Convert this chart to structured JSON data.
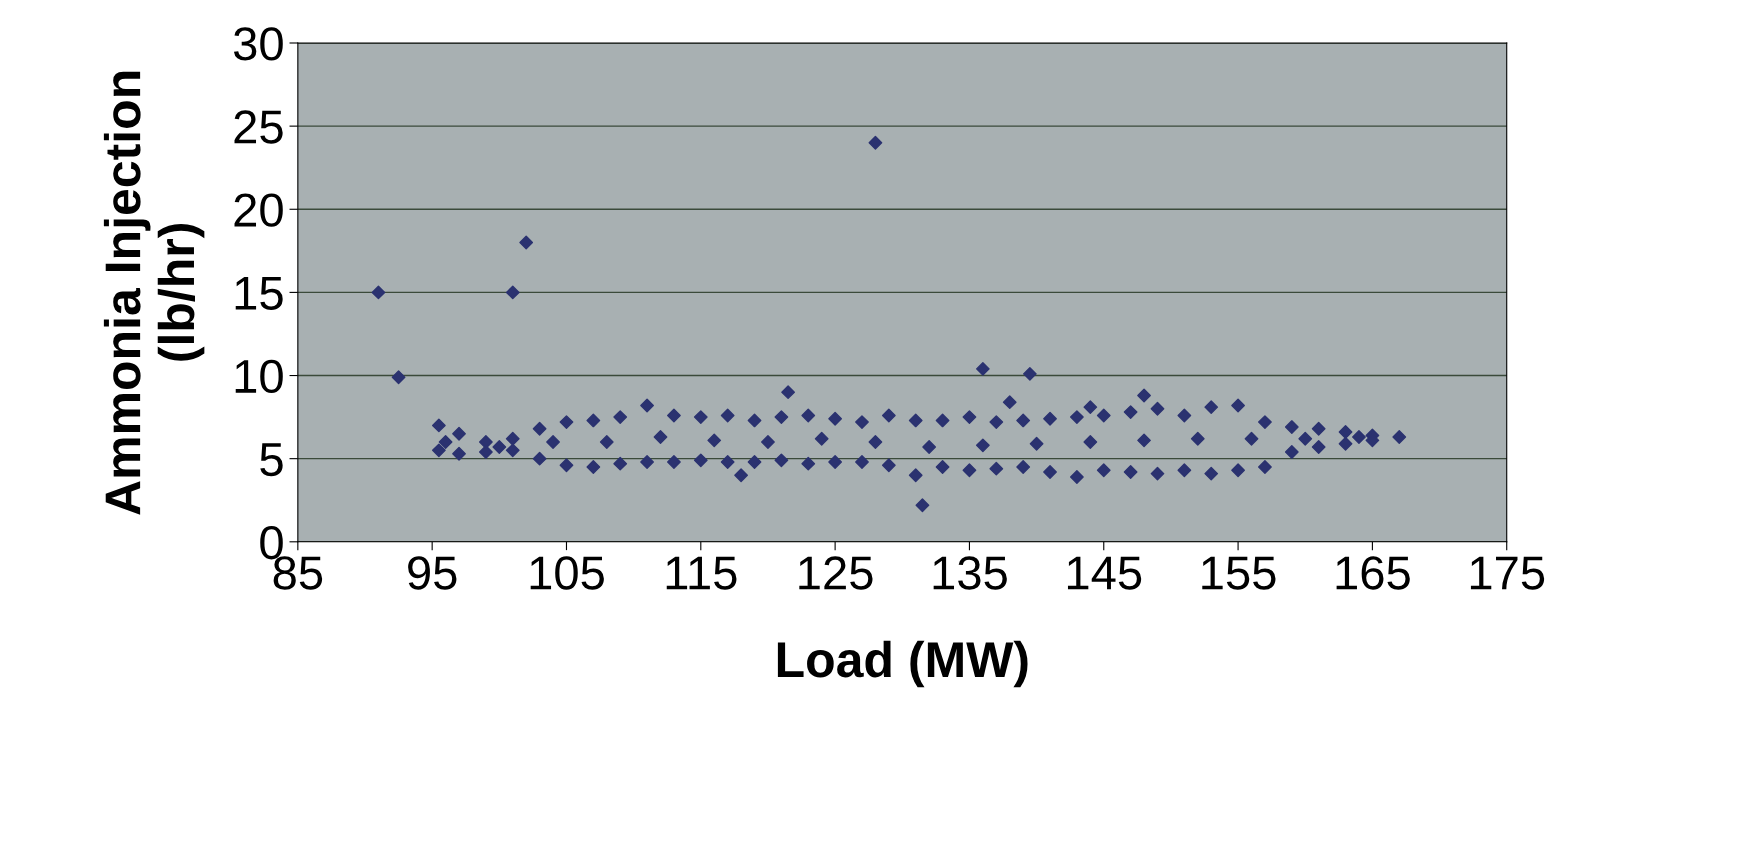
{
  "chart_data": {
    "type": "scatter",
    "xlabel": "Load (MW)",
    "ylabel": "Ammonia Injection\n(lb/hr)",
    "xlim": [
      85,
      175
    ],
    "xticks": [
      85,
      95,
      105,
      115,
      125,
      135,
      145,
      155,
      165,
      175
    ],
    "ylim": [
      0,
      30
    ],
    "yticks": [
      0,
      5,
      10,
      15,
      20,
      25,
      30
    ],
    "grid": "y",
    "marker": "diamond",
    "series": [
      {
        "color": "#2b3270",
        "x": [
          91,
          92.5,
          101,
          102,
          128,
          121.5,
          136,
          139.5,
          138,
          144,
          148,
          118,
          131.5,
          95.5,
          97,
          99,
          101,
          103,
          105,
          107,
          109,
          111,
          113,
          115,
          117,
          119,
          121,
          123,
          125,
          127,
          129,
          131,
          133,
          135,
          137,
          139,
          141,
          143,
          145,
          147,
          149,
          151,
          153,
          155,
          157,
          159,
          161,
          163,
          165,
          167,
          95.5,
          97,
          99,
          101,
          103,
          105,
          107,
          109,
          111,
          113,
          115,
          117,
          119,
          121,
          123,
          125,
          127,
          129,
          131,
          133,
          135,
          137,
          139,
          141,
          143,
          145,
          147,
          149,
          151,
          153,
          155,
          157,
          159,
          161,
          163,
          165,
          96,
          100,
          104,
          108,
          112,
          116,
          120,
          124,
          128,
          132,
          136,
          140,
          144,
          148,
          152,
          156,
          160,
          164
        ],
        "values": [
          15,
          9.9,
          15,
          18,
          24,
          9,
          10.4,
          10.1,
          8.4,
          8.1,
          8.8,
          4,
          2.2,
          7,
          6.5,
          6,
          6.2,
          6.8,
          7.2,
          7.3,
          7.5,
          8.2,
          7.6,
          7.5,
          7.6,
          7.3,
          7.5,
          7.6,
          7.4,
          7.2,
          7.6,
          7.3,
          7.3,
          7.5,
          7.2,
          7.3,
          7.4,
          7.5,
          7.6,
          7.8,
          8,
          7.6,
          8.1,
          8.2,
          7.2,
          6.9,
          6.8,
          6.6,
          6.4,
          6.3,
          5.5,
          5.3,
          5.4,
          5.5,
          5,
          4.6,
          4.5,
          4.7,
          4.8,
          4.8,
          4.9,
          4.8,
          4.8,
          4.9,
          4.7,
          4.8,
          4.8,
          4.6,
          4,
          4.5,
          4.3,
          4.4,
          4.5,
          4.2,
          3.9,
          4.3,
          4.2,
          4.1,
          4.3,
          4.1,
          4.3,
          4.5,
          5.4,
          5.7,
          5.9,
          6.1,
          6,
          5.7,
          6,
          6,
          6.3,
          6.1,
          6,
          6.2,
          6,
          5.7,
          5.8,
          5.9,
          6,
          6.1,
          6.2,
          6.2,
          6.2,
          6.3
        ]
      }
    ]
  }
}
